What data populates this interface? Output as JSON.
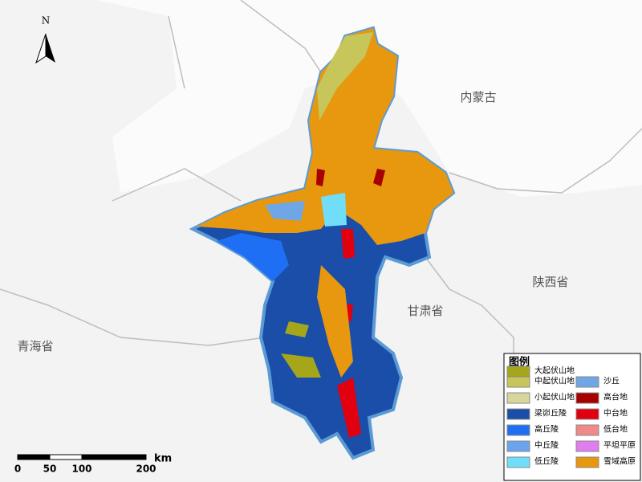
{
  "north": "N",
  "regions": [
    "内蒙古",
    "陕西省",
    "甘肃省",
    "青海省"
  ],
  "legend": {
    "title": "图例",
    "items": [
      {
        "label": "大起伏山地",
        "color": "#a6a61a"
      },
      {
        "label": "中起伏山地",
        "color": "#c6c65a"
      },
      {
        "label": "小起伏山地",
        "color": "#d6d69c"
      },
      {
        "label": "梁峁丘陵",
        "color": "#1a4ea8"
      },
      {
        "label": "高丘陵",
        "color": "#1f6ff5"
      },
      {
        "label": "中丘陵",
        "color": "#6aa4ee"
      },
      {
        "label": "低丘陵",
        "color": "#70def8"
      },
      {
        "label": "沙丘",
        "color": "#6fa6e6"
      },
      {
        "label": "高台地",
        "color": "#a80000"
      },
      {
        "label": "中台地",
        "color": "#e00010"
      },
      {
        "label": "低台地",
        "color": "#f08a8a"
      },
      {
        "label": "平坦平原",
        "color": "#e07ef0"
      },
      {
        "label": "雪域高原",
        "color": "#e8980e"
      }
    ]
  },
  "scale": {
    "ticks": [
      0,
      50,
      100,
      200
    ],
    "unit": "km"
  }
}
